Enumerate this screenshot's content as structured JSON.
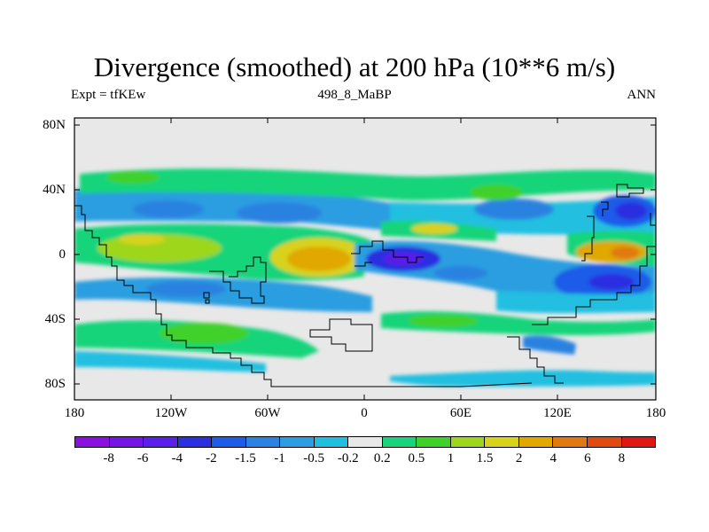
{
  "title": "Divergence (smoothed) at 200 hPa (10**6 m/s)",
  "subtitle_left": "Expt = tfKEw",
  "subtitle_center": "498_8_MaBP",
  "subtitle_right": "ANN",
  "y_ticks": [
    "80N",
    "40N",
    "0",
    "40S",
    "80S"
  ],
  "x_ticks": [
    "180",
    "120W",
    "60W",
    "0",
    "60E",
    "120E",
    "180"
  ],
  "colorbar": {
    "colors": [
      "#8b10e0",
      "#7515e5",
      "#5a1fe8",
      "#2a2fe0",
      "#1e5ce8",
      "#2b82e0",
      "#2a9ee0",
      "#20bfe0",
      "#e8e8e8",
      "#19d47a",
      "#3fd12a",
      "#9ed61e",
      "#d9d21a",
      "#e0a800",
      "#e07a10",
      "#e04a10",
      "#e01515"
    ],
    "labels": [
      "-8",
      "-6",
      "-4",
      "-2",
      "-1.5",
      "-1",
      "-0.5",
      "-0.2",
      "0.2",
      "0.5",
      "1",
      "1.5",
      "2",
      "4",
      "6",
      "8"
    ]
  },
  "palette": {
    "background": "#e8e8e8",
    "coast": "#000000"
  }
}
